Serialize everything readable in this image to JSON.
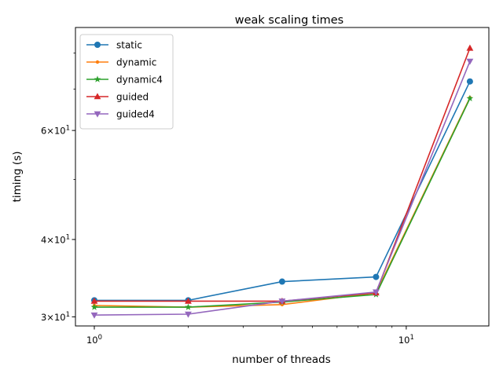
{
  "chart_data": {
    "type": "line",
    "title": "weak scaling times",
    "xlabel": "number of threads",
    "ylabel": "timing (s)",
    "xscale": "log",
    "yscale": "log",
    "xlim": [
      0.87,
      18.4
    ],
    "ylim": [
      29.0,
      88.0
    ],
    "grid": false,
    "legend_placement": "upper-left",
    "x": [
      1,
      2,
      4,
      8,
      16
    ],
    "series": [
      {
        "name": "static",
        "color": "#1f77b4",
        "marker": "circle",
        "values": [
          31.9,
          31.9,
          34.2,
          34.8,
          72.0
        ]
      },
      {
        "name": "dynamic",
        "color": "#ff7f0e",
        "marker": "point",
        "values": [
          31.3,
          31.1,
          31.4,
          32.8,
          67.8
        ]
      },
      {
        "name": "dynamic4",
        "color": "#2ca02c",
        "marker": "star",
        "values": [
          31.1,
          31.1,
          31.7,
          32.6,
          67.6
        ]
      },
      {
        "name": "guided",
        "color": "#d62728",
        "marker": "triangle-up",
        "values": [
          31.8,
          31.8,
          31.8,
          32.8,
          81.5
        ]
      },
      {
        "name": "guided4",
        "color": "#9467bd",
        "marker": "triangle-down",
        "values": [
          30.2,
          30.3,
          31.8,
          32.9,
          77.6
        ]
      }
    ],
    "x_ticks_major": [
      {
        "value": 1,
        "base": "10",
        "exp": "0"
      },
      {
        "value": 10,
        "base": "10",
        "exp": "1"
      }
    ],
    "x_ticks_minor": [
      2,
      3,
      4,
      5,
      6,
      7,
      8,
      9,
      20
    ],
    "y_ticks_major": [
      {
        "value": 30,
        "mant": "3",
        "base": "10",
        "exp": "1"
      },
      {
        "value": 40,
        "mant": "4",
        "base": "10",
        "exp": "1"
      },
      {
        "value": 60,
        "mant": "6",
        "base": "10",
        "exp": "1"
      }
    ],
    "y_ticks_minor": [
      50,
      70,
      80
    ]
  }
}
